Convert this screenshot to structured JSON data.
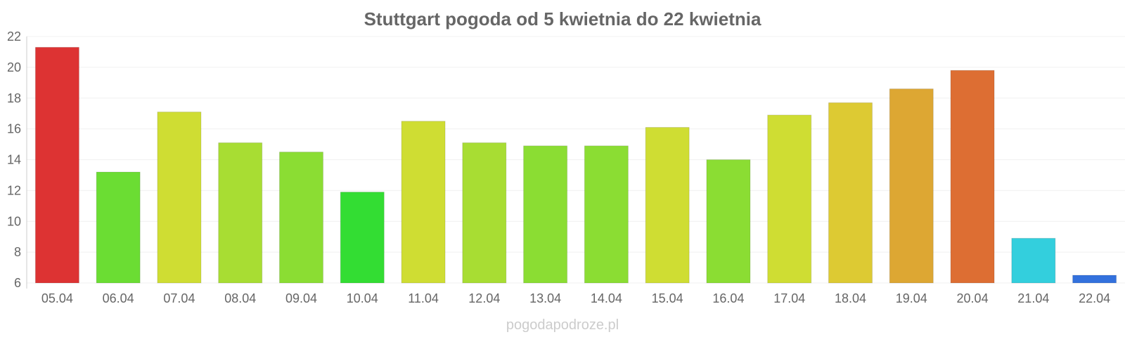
{
  "watermark": "pogodapodroze.pl",
  "chart_data": {
    "type": "bar",
    "title": "Stuttgart pogoda od 5 kwietnia do 22 kwietnia",
    "xlabel": "",
    "ylabel": "",
    "ylim": [
      6,
      22
    ],
    "yticks": [
      "6",
      "8",
      "10",
      "12",
      "14",
      "16",
      "18",
      "20",
      "22"
    ],
    "grid": true,
    "categories": [
      "05.04",
      "06.04",
      "07.04",
      "08.04",
      "09.04",
      "10.04",
      "11.04",
      "12.04",
      "13.04",
      "14.04",
      "15.04",
      "16.04",
      "17.04",
      "18.04",
      "19.04",
      "20.04",
      "21.04",
      "22.04"
    ],
    "values": [
      21.3,
      13.2,
      17.1,
      15.1,
      14.5,
      11.9,
      16.5,
      15.1,
      14.9,
      14.9,
      16.1,
      14.0,
      16.9,
      17.7,
      18.6,
      19.8,
      8.9,
      6.5
    ],
    "colors": [
      "#dd3333",
      "#6bdd33",
      "#cfdd33",
      "#a8dd33",
      "#8bdd33",
      "#33dd33",
      "#cfdd33",
      "#a8dd33",
      "#8bdd33",
      "#8bdd33",
      "#cfdd33",
      "#8bdd33",
      "#cfdd33",
      "#ddca33",
      "#dda733",
      "#dd6e33",
      "#33cfdd",
      "#3371dd"
    ]
  }
}
